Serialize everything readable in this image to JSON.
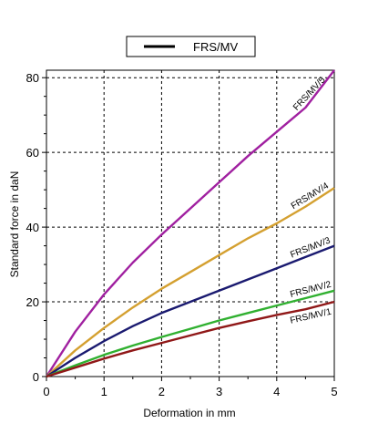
{
  "chart_data": {
    "type": "line",
    "title": "",
    "xlabel": "Deformation in mm",
    "ylabel": "Standard force in daN",
    "xlim": [
      0,
      5
    ],
    "ylim": [
      0,
      82
    ],
    "x_ticks": [
      "0",
      "1",
      "2",
      "3",
      "4",
      "5"
    ],
    "y_ticks": [
      "0",
      "20",
      "40",
      "60",
      "80"
    ],
    "grid": true,
    "legend": {
      "placement": "top-center",
      "entries": [
        {
          "label": "FRS/MV",
          "color": "#000000"
        }
      ]
    },
    "series": [
      {
        "name": "FRS/MV/5",
        "color": "#a020a0",
        "x": [
          0,
          0.5,
          1,
          1.5,
          2,
          2.5,
          3,
          3.5,
          4,
          4.5,
          5
        ],
        "y": [
          0,
          12,
          22,
          30.5,
          38,
          45,
          52,
          59,
          65.5,
          72,
          82
        ]
      },
      {
        "name": "FRS/MV/4",
        "color": "#d4a030",
        "x": [
          0,
          0.5,
          1,
          1.5,
          2,
          2.5,
          3,
          3.5,
          4,
          4.5,
          5
        ],
        "y": [
          0,
          7,
          13,
          18.5,
          23.5,
          28,
          32.5,
          37,
          41,
          45.5,
          50.5
        ]
      },
      {
        "name": "FRS/MV/3",
        "color": "#1a1a70",
        "x": [
          0,
          0.5,
          1,
          1.5,
          2,
          2.5,
          3,
          3.5,
          4,
          4.5,
          5
        ],
        "y": [
          0,
          5,
          9.5,
          13.5,
          17,
          20,
          23,
          26,
          29,
          32,
          35
        ]
      },
      {
        "name": "FRS/MV/2",
        "color": "#30b030",
        "x": [
          0,
          0.5,
          1,
          1.5,
          2,
          2.5,
          3,
          3.5,
          4,
          4.5,
          5
        ],
        "y": [
          0,
          3,
          5.8,
          8.3,
          10.6,
          12.8,
          15,
          17,
          19,
          21,
          23
        ]
      },
      {
        "name": "FRS/MV/1",
        "color": "#901818",
        "x": [
          0,
          0.5,
          1,
          1.5,
          2,
          2.5,
          3,
          3.5,
          4,
          4.5,
          5
        ],
        "y": [
          0,
          2.4,
          4.8,
          7,
          9,
          11,
          13,
          14.8,
          16.5,
          18,
          20
        ]
      }
    ]
  }
}
